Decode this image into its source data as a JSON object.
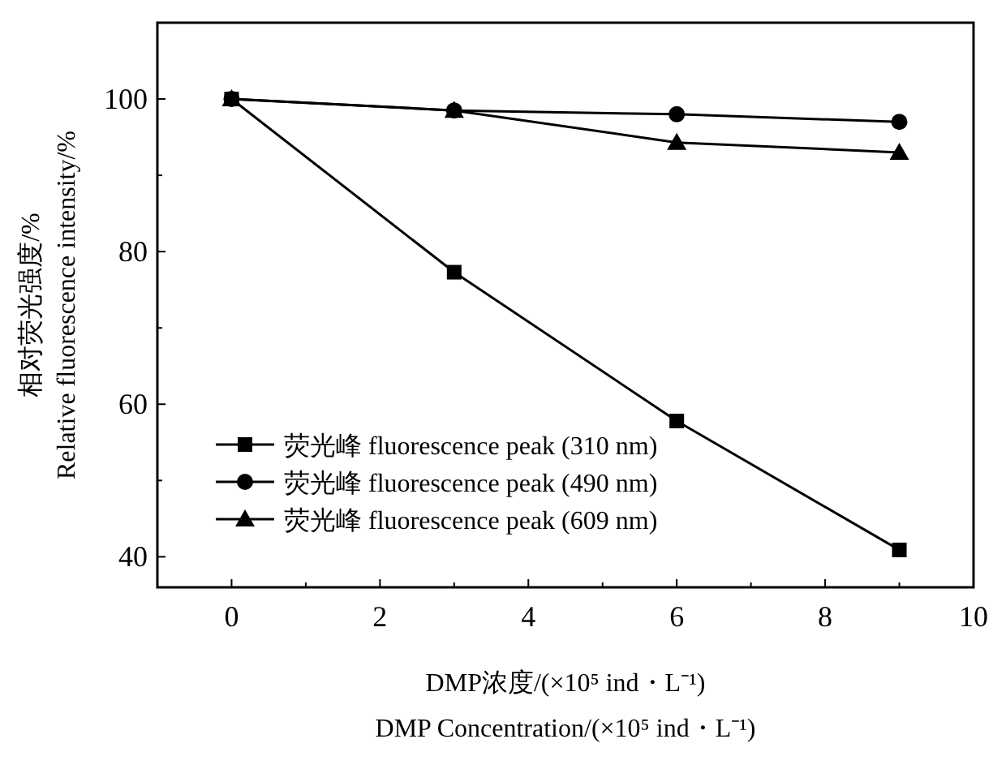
{
  "chart_data": {
    "type": "line",
    "xlabel": "DMP浓度/(×10⁵ ind・L⁻¹)\nDMP Concentration/(×10⁵ ind・L⁻¹)",
    "ylabel": "相对荧光强度/%\nRelative fluorescence intensity/%",
    "x": [
      0,
      3,
      6,
      9
    ],
    "series": [
      {
        "name": "荧光峰 fluorescence peak (310 nm)",
        "color": "#000000",
        "marker": "square",
        "values": [
          100,
          77.3,
          57.8,
          40.9
        ]
      },
      {
        "name": "荧光峰 fluorescence peak (490 nm)",
        "color": "#000000",
        "marker": "circle",
        "values": [
          100,
          98.5,
          98,
          97
        ]
      },
      {
        "name": "荧光峰 fluorescence peak (609 nm)",
        "color": "#000000",
        "marker": "triangle",
        "values": [
          100,
          98.5,
          94.3,
          93
        ]
      }
    ],
    "xlim": [
      -1,
      10
    ],
    "ylim": [
      36,
      110
    ],
    "xticks": [
      0,
      2,
      4,
      6,
      8,
      10,
      {
        "value": 1,
        "label": null
      },
      {
        "value": 3,
        "label": null
      },
      {
        "value": 5,
        "label": null
      },
      {
        "value": 7,
        "label": null
      },
      {
        "value": 9,
        "label": null
      }
    ],
    "yticks": [
      40,
      60,
      80,
      100,
      {
        "value": 50,
        "label": null
      },
      {
        "value": 70,
        "label": null
      },
      {
        "value": 90,
        "label": null
      }
    ],
    "legend": "bottom left",
    "grid": false,
    "line_style": "solid"
  }
}
